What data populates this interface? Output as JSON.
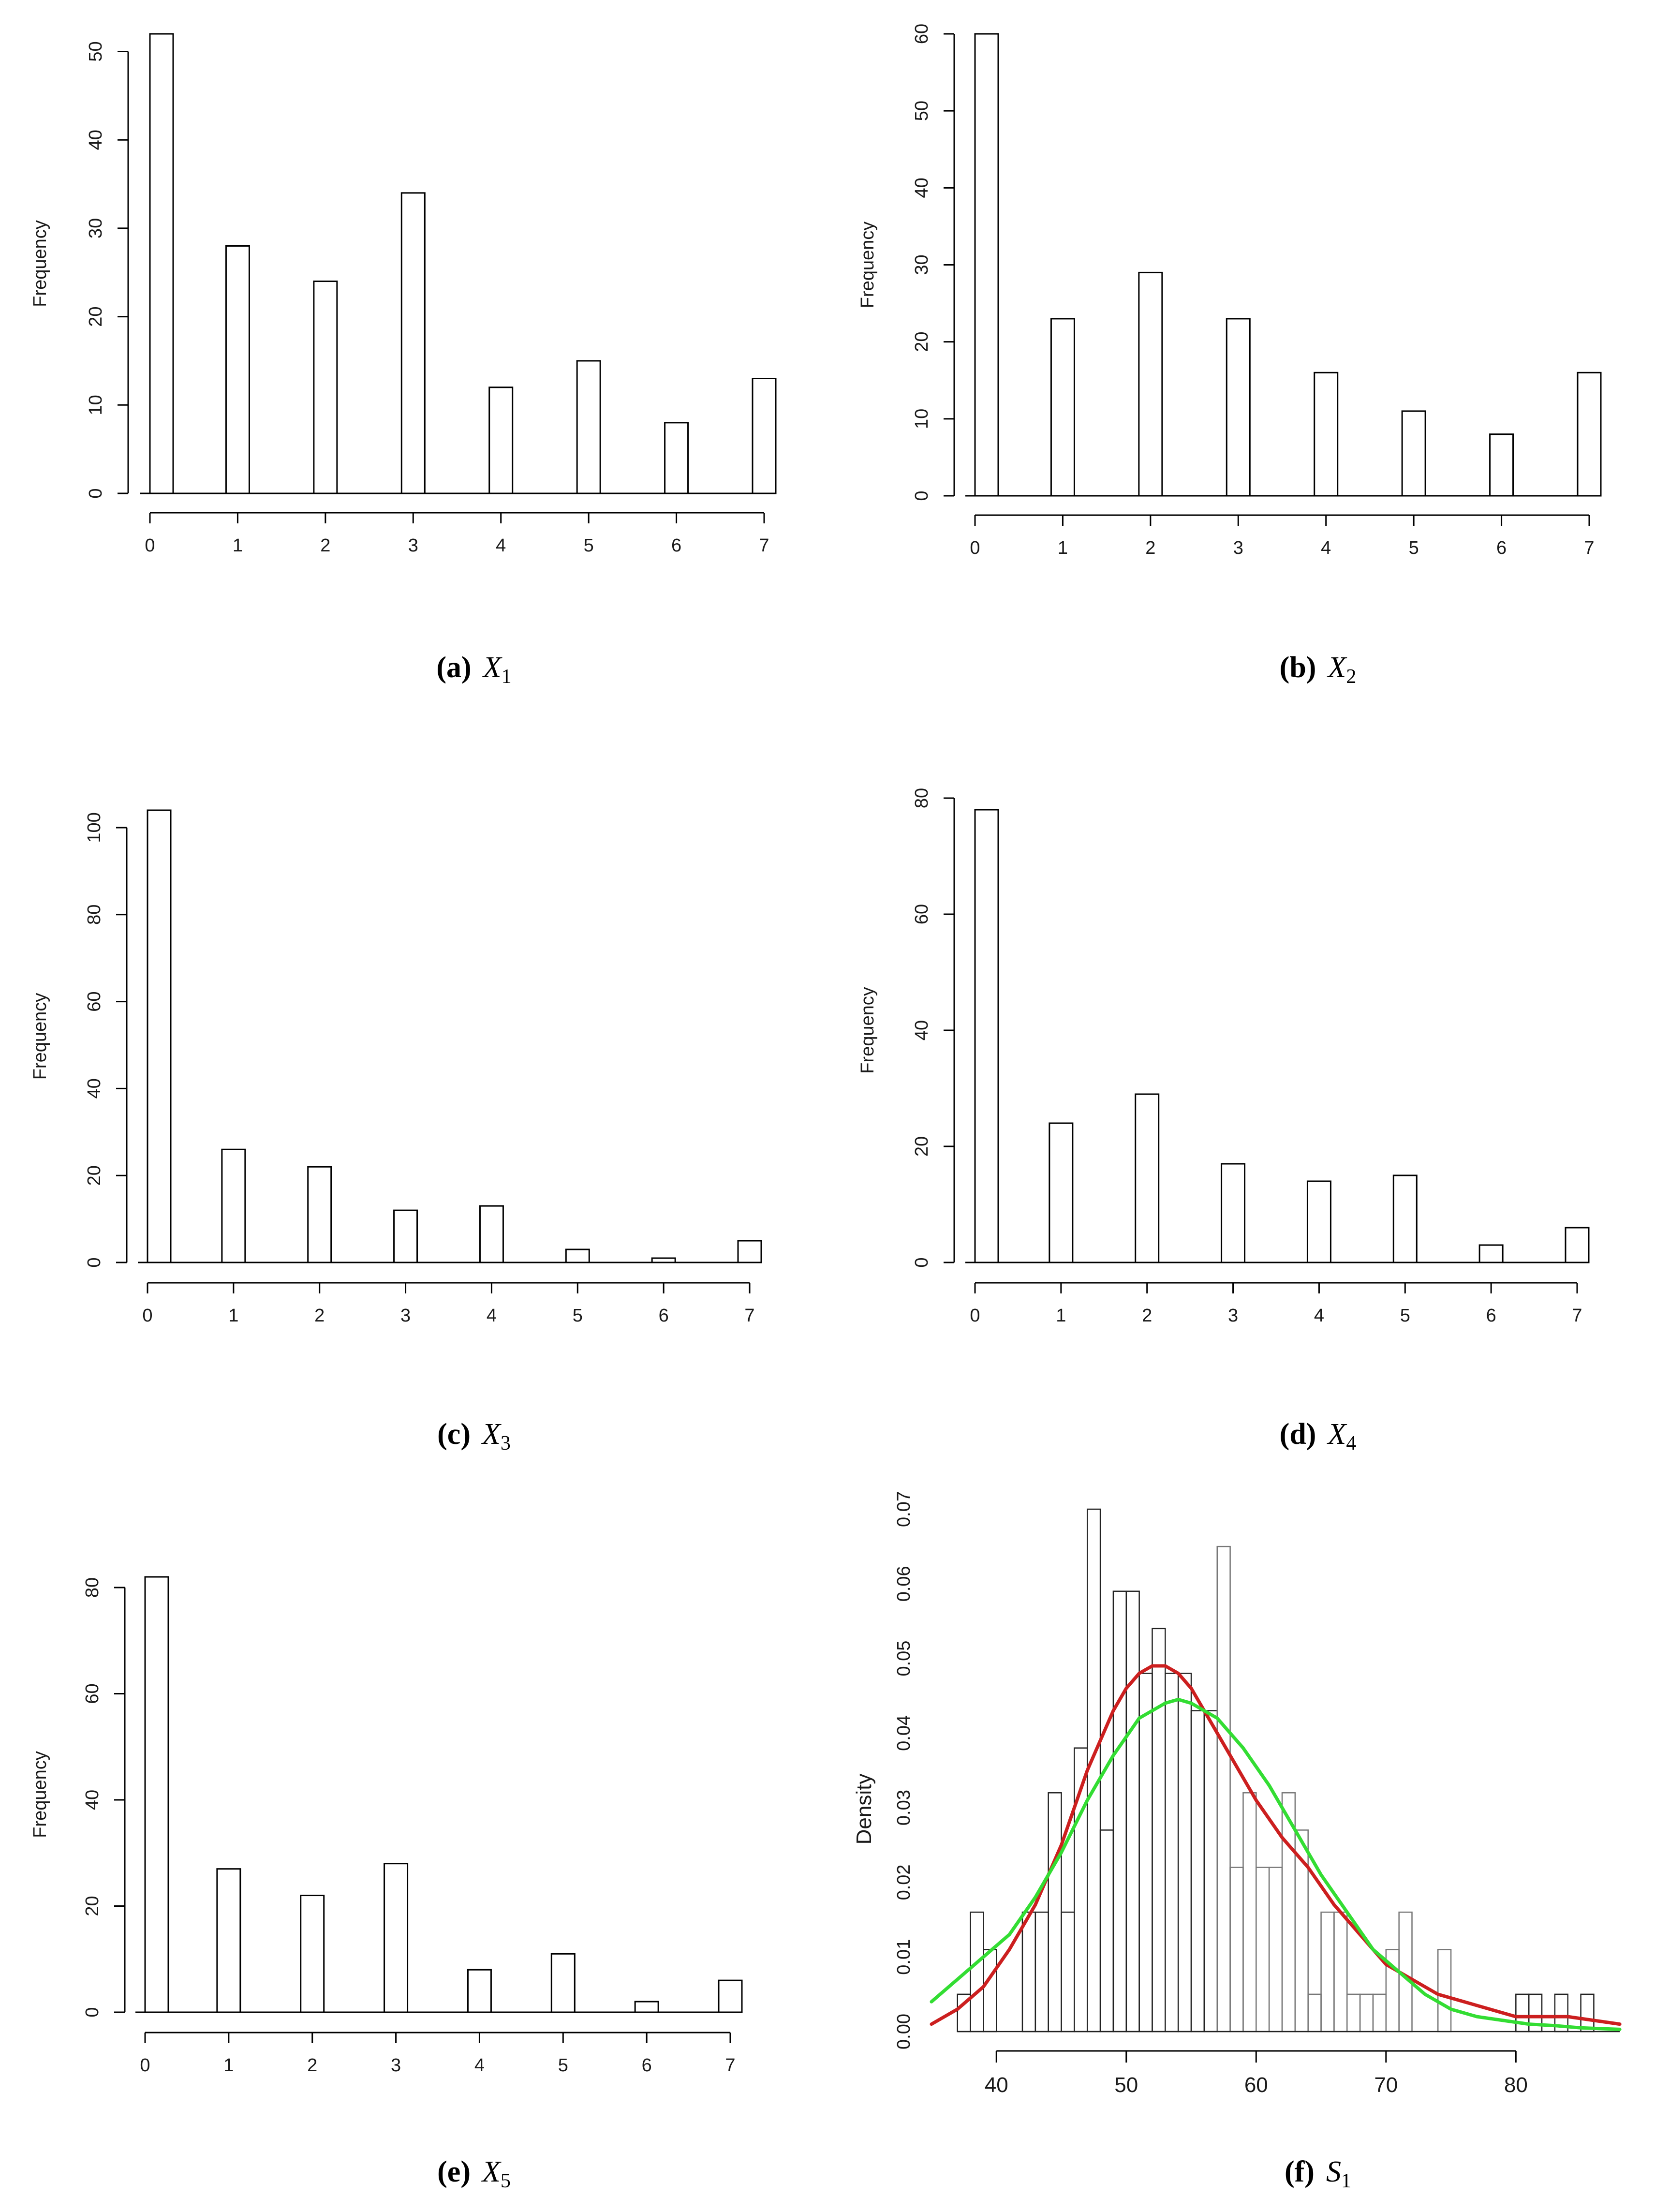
{
  "chart_data": [
    {
      "id": "a",
      "type": "bar",
      "label": "(a)",
      "variable": "X",
      "subscript": "1",
      "ylabel": "Frequency",
      "categories": [
        0,
        1,
        2,
        3,
        4,
        5,
        6,
        7
      ],
      "values": [
        52,
        28,
        24,
        34,
        12,
        15,
        8,
        13
      ],
      "xticks": [
        0,
        1,
        2,
        3,
        4,
        5,
        6,
        7
      ],
      "yticks": [
        0,
        10,
        20,
        30,
        40,
        50
      ],
      "xlim": [
        0,
        7
      ],
      "ylim": [
        0,
        52
      ],
      "grid": false
    },
    {
      "id": "b",
      "type": "bar",
      "label": "(b)",
      "variable": "X",
      "subscript": "2",
      "ylabel": "Frequency",
      "categories": [
        0,
        1,
        2,
        3,
        4,
        5,
        6,
        7
      ],
      "values": [
        60,
        23,
        29,
        23,
        16,
        11,
        8,
        16
      ],
      "xticks": [
        0,
        1,
        2,
        3,
        4,
        5,
        6,
        7
      ],
      "yticks": [
        0,
        10,
        20,
        30,
        40,
        50,
        60
      ],
      "xlim": [
        0,
        7
      ],
      "ylim": [
        0,
        60
      ],
      "grid": false
    },
    {
      "id": "c",
      "type": "bar",
      "label": "(c)",
      "variable": "X",
      "subscript": "3",
      "ylabel": "Frequency",
      "categories": [
        0,
        1,
        2,
        3,
        4,
        5,
        6,
        7
      ],
      "values": [
        104,
        26,
        22,
        12,
        13,
        3,
        1,
        5
      ],
      "xticks": [
        0,
        1,
        2,
        3,
        4,
        5,
        6,
        7
      ],
      "yticks": [
        0,
        20,
        40,
        60,
        80,
        100
      ],
      "xlim": [
        0,
        7
      ],
      "ylim": [
        0,
        104
      ],
      "grid": false
    },
    {
      "id": "d",
      "type": "bar",
      "label": "(d)",
      "variable": "X",
      "subscript": "4",
      "ylabel": "Frequency",
      "categories": [
        0,
        1,
        2,
        3,
        4,
        5,
        6,
        7
      ],
      "values": [
        78,
        24,
        29,
        17,
        14,
        15,
        3,
        6
      ],
      "xticks": [
        0,
        1,
        2,
        3,
        4,
        5,
        6,
        7
      ],
      "yticks": [
        0,
        20,
        40,
        60,
        80
      ],
      "xlim": [
        0,
        7
      ],
      "ylim": [
        0,
        80
      ],
      "grid": false
    },
    {
      "id": "e",
      "type": "bar",
      "label": "(e)",
      "variable": "X",
      "subscript": "5",
      "ylabel": "Frequency",
      "categories": [
        0,
        1,
        2,
        3,
        4,
        5,
        6,
        7
      ],
      "values": [
        82,
        27,
        22,
        28,
        8,
        11,
        2,
        6
      ],
      "xticks": [
        0,
        1,
        2,
        3,
        4,
        5,
        6,
        7
      ],
      "yticks": [
        0,
        20,
        40,
        60,
        80
      ],
      "xlim": [
        0,
        7
      ],
      "ylim": [
        0,
        82
      ],
      "grid": false
    },
    {
      "id": "f",
      "type": "histogram",
      "label": "(f)",
      "variable": "S",
      "subscript": "1",
      "ylabel": "Density",
      "bin_width": 1,
      "bins_start": [
        37,
        38,
        39,
        40,
        41,
        42,
        43,
        44,
        45,
        46,
        47,
        48,
        49,
        50,
        51,
        52,
        53,
        54,
        55,
        56,
        57,
        58,
        59,
        60,
        61,
        62,
        63,
        64,
        65,
        66,
        67,
        68,
        69,
        70,
        71,
        72,
        73,
        74,
        75,
        76,
        77,
        78,
        79,
        80,
        81,
        82,
        83,
        84,
        85,
        86,
        87
      ],
      "density": [
        0.005,
        0.016,
        0.011,
        0.0,
        0.0,
        0.016,
        0.016,
        0.032,
        0.016,
        0.038,
        0.07,
        0.027,
        0.059,
        0.059,
        0.048,
        0.054,
        0.048,
        0.048,
        0.043,
        0.043,
        0.065,
        0.022,
        0.032,
        0.022,
        0.022,
        0.032,
        0.027,
        0.005,
        0.016,
        0.016,
        0.005,
        0.005,
        0.005,
        0.011,
        0.016,
        0.0,
        0.0,
        0.011,
        0.0,
        0.0,
        0.0,
        0.0,
        0.0,
        0.005,
        0.005,
        0.0,
        0.005,
        0.0,
        0.005,
        0.0,
        0.0
      ],
      "series": [
        {
          "color": "#cc1f1f",
          "x": [
            35,
            37,
            39,
            41,
            43,
            45,
            47,
            49,
            50,
            51,
            52,
            53,
            54,
            55,
            56,
            58,
            60,
            62,
            64,
            66,
            68,
            70,
            72,
            74,
            76,
            78,
            80,
            82,
            84,
            86,
            88
          ],
          "y": [
            0.001,
            0.003,
            0.006,
            0.011,
            0.017,
            0.025,
            0.035,
            0.043,
            0.046,
            0.048,
            0.049,
            0.049,
            0.048,
            0.046,
            0.043,
            0.037,
            0.031,
            0.026,
            0.022,
            0.017,
            0.013,
            0.009,
            0.007,
            0.005,
            0.004,
            0.003,
            0.002,
            0.002,
            0.002,
            0.0015,
            0.001
          ]
        },
        {
          "color": "#33dd33",
          "x": [
            35,
            37,
            39,
            41,
            43,
            45,
            47,
            49,
            51,
            53,
            54,
            55,
            57,
            59,
            61,
            63,
            65,
            67,
            69,
            71,
            73,
            75,
            77,
            79,
            81,
            83,
            85,
            88
          ],
          "y": [
            0.004,
            0.007,
            0.01,
            0.013,
            0.018,
            0.024,
            0.031,
            0.037,
            0.042,
            0.044,
            0.0445,
            0.044,
            0.042,
            0.038,
            0.033,
            0.027,
            0.021,
            0.016,
            0.011,
            0.008,
            0.005,
            0.003,
            0.002,
            0.0015,
            0.001,
            0.0008,
            0.0005,
            0.0003
          ]
        }
      ],
      "xticks": [
        40,
        50,
        60,
        70,
        80
      ],
      "yticks": [
        "0.00",
        "0.01",
        "0.02",
        "0.03",
        "0.04",
        "0.05",
        "0.06",
        "0.07"
      ],
      "xlim": [
        35,
        89
      ],
      "ylim": [
        0,
        0.07
      ],
      "grid": false
    }
  ]
}
